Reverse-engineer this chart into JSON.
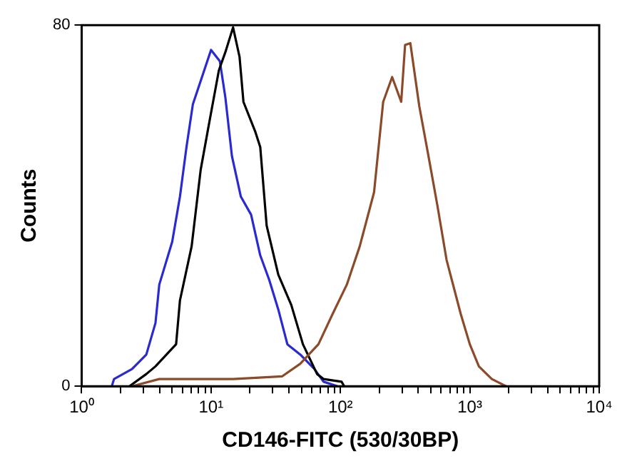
{
  "chart_data": {
    "type": "line",
    "xlabel": "CD146-FITC (530/30BP)",
    "ylabel": "Counts",
    "log": "x",
    "grid": false,
    "legend": false,
    "marker": "none",
    "line_style": "solid",
    "xlim": [
      1,
      10000
    ],
    "ylim": [
      0,
      80
    ],
    "xticks": [
      {
        "value": 1,
        "label": "10⁰"
      },
      {
        "value": 2,
        "label": null
      },
      {
        "value": 3,
        "label": null
      },
      {
        "value": 4,
        "label": null
      },
      {
        "value": 5,
        "label": null
      },
      {
        "value": 6,
        "label": null
      },
      {
        "value": 7,
        "label": null
      },
      {
        "value": 8,
        "label": null
      },
      {
        "value": 9,
        "label": null
      },
      {
        "value": 10,
        "label": "10¹"
      },
      {
        "value": 20,
        "label": null
      },
      {
        "value": 30,
        "label": null
      },
      {
        "value": 40,
        "label": null
      },
      {
        "value": 50,
        "label": null
      },
      {
        "value": 60,
        "label": null
      },
      {
        "value": 70,
        "label": null
      },
      {
        "value": 80,
        "label": null
      },
      {
        "value": 90,
        "label": null
      },
      {
        "value": 100,
        "label": "10²"
      },
      {
        "value": 200,
        "label": null
      },
      {
        "value": 300,
        "label": null
      },
      {
        "value": 400,
        "label": null
      },
      {
        "value": 500,
        "label": null
      },
      {
        "value": 600,
        "label": null
      },
      {
        "value": 700,
        "label": null
      },
      {
        "value": 800,
        "label": null
      },
      {
        "value": 900,
        "label": null
      },
      {
        "value": 1000,
        "label": "10³"
      },
      {
        "value": 2000,
        "label": null
      },
      {
        "value": 3000,
        "label": null
      },
      {
        "value": 4000,
        "label": null
      },
      {
        "value": 5000,
        "label": null
      },
      {
        "value": 6000,
        "label": null
      },
      {
        "value": 7000,
        "label": null
      },
      {
        "value": 8000,
        "label": null
      },
      {
        "value": 9000,
        "label": null
      },
      {
        "value": 10000,
        "label": "10⁴"
      }
    ],
    "yticks": [
      0,
      80
    ],
    "series": [
      {
        "color": "#8b4a2a",
        "x": [
          2.45,
          3.98,
          14.8,
          35.5,
          49,
          67.6,
          87,
          112,
          141,
          182,
          214,
          251,
          295,
          316,
          347,
          407,
          479,
          562,
          661,
          851,
          1000,
          1175,
          1479,
          1905
        ],
        "values": [
          0,
          1.6,
          1.6,
          2.2,
          5,
          9.3,
          16,
          22.5,
          31,
          43,
          63,
          68.5,
          63,
          75.6,
          76,
          62,
          51,
          40,
          28,
          16,
          9.3,
          4.4,
          1.6,
          0
        ]
      },
      {
        "color": "#000000",
        "x": [
          2.34,
          3.16,
          3.72,
          5.37,
          5.75,
          7.08,
          8.32,
          9.77,
          11.5,
          12.9,
          14.8,
          16.6,
          17.8,
          21.9,
          24,
          26.9,
          33.1,
          41.7,
          51.3,
          66,
          74,
          102,
          107
        ],
        "values": [
          0,
          2.7,
          4.4,
          9.3,
          19,
          31,
          48,
          59,
          70,
          74,
          79.5,
          73,
          63,
          56.5,
          53,
          35.6,
          24.7,
          18,
          9.3,
          2.7,
          1.6,
          1,
          0
        ]
      },
      {
        "color": "#2a2ad0",
        "x": [
          1.71,
          1.78,
          2.45,
          3.16,
          3.72,
          3.98,
          5.01,
          5.75,
          6.46,
          7.24,
          8.51,
          10,
          11.7,
          12.9,
          14.5,
          17,
          20.4,
          24,
          28.2,
          33.1,
          38.9,
          49,
          63,
          74,
          95
        ],
        "values": [
          0,
          1.6,
          3.8,
          7,
          14,
          22.5,
          32,
          42,
          53,
          62.5,
          68.5,
          74.5,
          72,
          64,
          51,
          42,
          38,
          29,
          23.5,
          17,
          9.3,
          7,
          3.8,
          1,
          0
        ]
      }
    ]
  }
}
